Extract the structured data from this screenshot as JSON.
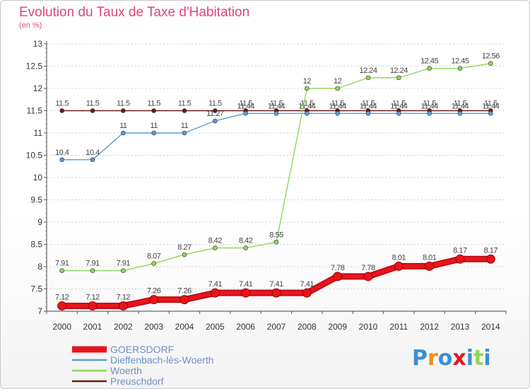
{
  "header": {
    "title": "Evolution du Taux de Taxe d'Habitation",
    "unit": "(en %)"
  },
  "logo": {
    "text": "Proxiti"
  },
  "chart_data": {
    "type": "line",
    "x": [
      "2000",
      "2001",
      "2002",
      "2003",
      "2004",
      "2005",
      "2006",
      "2007",
      "2008",
      "2009",
      "2010",
      "2011",
      "2012",
      "2013",
      "2014"
    ],
    "ylim": [
      7,
      13
    ],
    "yticks": [
      "7",
      "7.5",
      "8",
      "8.5",
      "9",
      "9.5",
      "10",
      "10.5",
      "11",
      "11.5",
      "12",
      "12.5",
      "13"
    ],
    "grid": "horizontal dotted",
    "legend_position": "bottom-left",
    "series": [
      {
        "name": "Preuschdorf",
        "color": "#6b1a1a",
        "values": [
          11.5,
          11.5,
          11.5,
          11.5,
          11.5,
          11.5,
          11.5,
          11.5,
          11.5,
          11.5,
          11.5,
          11.5,
          11.5,
          11.5,
          11.5
        ],
        "labels": [
          "11.5",
          "11.5",
          "11.5",
          "11.5",
          "11.5",
          "11.5",
          "11.5",
          "11.5",
          "11.5",
          "11.5",
          "11.5",
          "11.5",
          "11.5",
          "11.5",
          "11.5"
        ]
      },
      {
        "name": "Dieffenbach-lès-Woerth",
        "color": "#5b9bd5",
        "values": [
          10.4,
          10.4,
          11,
          11,
          11,
          11.27,
          11.44,
          11.44,
          11.44,
          11.44,
          11.44,
          11.44,
          11.44,
          11.44,
          11.44
        ],
        "labels": [
          "10.4",
          "10.4",
          "11",
          "11",
          "11",
          "11.27",
          "11.44",
          "11.44",
          "11.44",
          "11.44",
          "11.44",
          "11.44",
          "11.44",
          "11.44",
          "11.44"
        ]
      },
      {
        "name": "Woerth",
        "color": "#8ed65a",
        "values": [
          7.91,
          7.91,
          7.91,
          8.07,
          8.27,
          8.42,
          8.42,
          8.55,
          12,
          12,
          12.24,
          12.24,
          12.45,
          12.45,
          12.56
        ],
        "labels": [
          "7.91",
          "7.91",
          "7.91",
          "8.07",
          "8.27",
          "8.42",
          "8.42",
          "8.55",
          "12",
          "12",
          "12.24",
          "12.24",
          "12.45",
          "12.45",
          "12.56"
        ]
      },
      {
        "name": "GOERSDORF",
        "color": "#e8141c",
        "values": [
          7.12,
          7.12,
          7.12,
          7.26,
          7.26,
          7.41,
          7.41,
          7.41,
          7.41,
          7.78,
          7.78,
          8.01,
          8.01,
          8.17,
          8.17
        ],
        "labels": [
          "7.12",
          "7.12",
          "7.12",
          "7.26",
          "7.26",
          "7.41",
          "7.41",
          "7.41",
          "7.41",
          "7.78",
          "7.78",
          "8.01",
          "8.01",
          "8.17",
          "8.17"
        ]
      }
    ],
    "legend": [
      "GOERSDORF",
      "Dieffenbach-lès-Woerth",
      "Woerth",
      "Preuschdorf"
    ]
  }
}
